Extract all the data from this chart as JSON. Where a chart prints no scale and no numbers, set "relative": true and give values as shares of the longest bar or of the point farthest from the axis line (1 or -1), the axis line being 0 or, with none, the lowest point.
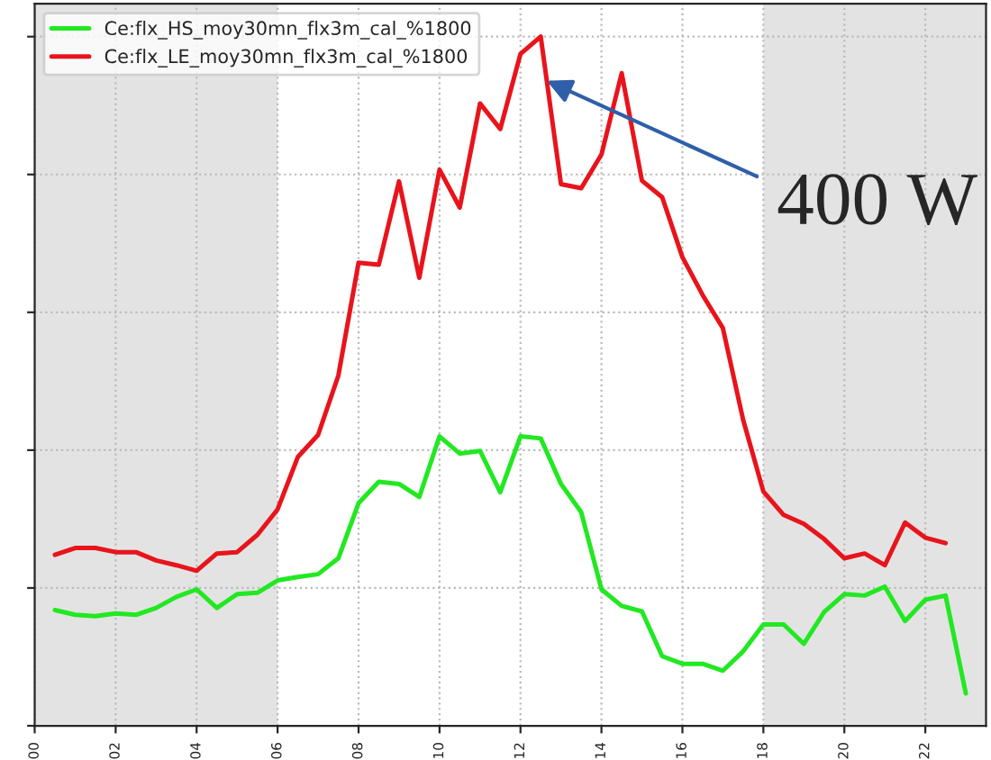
{
  "chart_data": {
    "type": "line",
    "relative": true,
    "x": [
      0.5,
      1,
      1.5,
      2,
      2.5,
      3,
      3.5,
      4,
      4.5,
      5,
      5.5,
      6,
      6.5,
      7,
      7.5,
      8,
      8.5,
      9,
      9.5,
      10,
      10.5,
      11,
      11.5,
      12,
      12.5,
      13,
      13.5,
      14,
      14.5,
      15,
      15.5,
      16,
      16.5,
      17,
      17.5,
      18,
      18.5,
      19,
      19.5,
      20,
      20.5,
      21,
      21.5,
      22,
      22.5,
      23
    ],
    "xlim": [
      0,
      23.5
    ],
    "xticks": [
      {
        "value": 0,
        "label": "00"
      },
      {
        "value": 2,
        "label": "02"
      },
      {
        "value": 4,
        "label": "04"
      },
      {
        "value": 6,
        "label": "06"
      },
      {
        "value": 8,
        "label": "08"
      },
      {
        "value": 10,
        "label": "10"
      },
      {
        "value": 12,
        "label": "12"
      },
      {
        "value": 14,
        "label": "14"
      },
      {
        "value": 16,
        "label": "16"
      },
      {
        "value": 18,
        "label": "18"
      },
      {
        "value": 20,
        "label": "20"
      },
      {
        "value": 22,
        "label": "22"
      }
    ],
    "tick_labels": "x",
    "series": [
      {
        "name": "Ce:flx_HS_moy30mn_flx3m_cal_%1800",
        "color": "#22e822",
        "values": [
          0.168,
          0.161,
          0.159,
          0.163,
          0.161,
          0.171,
          0.187,
          0.198,
          0.171,
          0.191,
          0.193,
          0.211,
          0.216,
          0.22,
          0.243,
          0.323,
          0.354,
          0.351,
          0.332,
          0.42,
          0.395,
          0.399,
          0.339,
          0.42,
          0.417,
          0.351,
          0.31,
          0.198,
          0.174,
          0.166,
          0.101,
          0.09,
          0.09,
          0.08,
          0.108,
          0.147,
          0.147,
          0.119,
          0.165,
          0.191,
          0.189,
          0.202,
          0.152,
          0.183,
          0.189,
          0.047
        ]
      },
      {
        "name": "Ce:flx_LE_moy30mn_flx3m_cal_%1800",
        "color": "#e8141c",
        "values": [
          0.248,
          0.258,
          0.258,
          0.252,
          0.252,
          0.24,
          0.233,
          0.225,
          0.25,
          0.252,
          0.277,
          0.314,
          0.39,
          0.422,
          0.508,
          0.672,
          0.669,
          0.79,
          0.65,
          0.807,
          0.752,
          0.903,
          0.866,
          0.975,
          1.0,
          0.786,
          0.78,
          0.829,
          0.947,
          0.791,
          0.767,
          0.68,
          0.625,
          0.577,
          0.444,
          0.34,
          0.306,
          0.293,
          0.271,
          0.243,
          0.25,
          0.233,
          0.295,
          0.273,
          0.265,
          null
        ]
      }
    ],
    "bands": [
      {
        "axis": "x",
        "from": 0,
        "to": 6,
        "color": "#e3e3e3"
      },
      {
        "axis": "x",
        "from": 18,
        "to": 23.5,
        "color": "#e3e3e3"
      }
    ],
    "annotations": [
      {
        "text": "400 W",
        "x": 12.65,
        "y": 0.936
      }
    ],
    "grid": true,
    "legend": "top left",
    "marker": "none",
    "line_style": "solid"
  }
}
